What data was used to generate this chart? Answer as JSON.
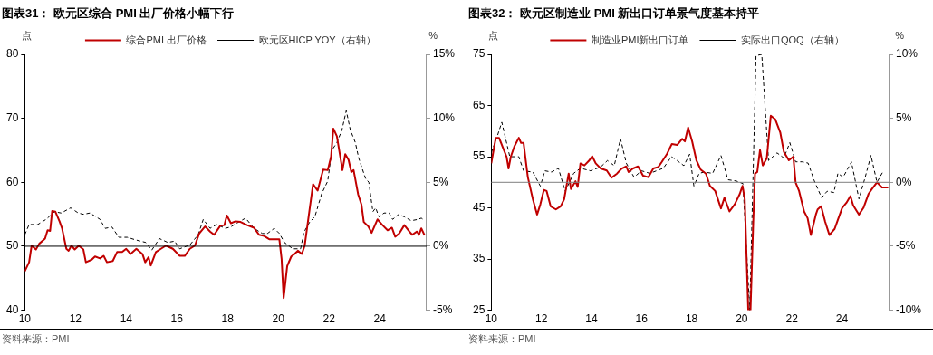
{
  "chart_data": [
    {
      "type": "line",
      "title": "图表31：  欧元区综合 PMI 出厂价格小幅下行",
      "ylabel": "点",
      "y2label": "%",
      "legend": "top",
      "marker": "none",
      "grid": false,
      "xlim": [
        2010,
        2025.85
      ],
      "xticks": [
        {
          "value": 2010,
          "label": "10"
        },
        {
          "value": 2012,
          "label": "12"
        },
        {
          "value": 2014,
          "label": "14"
        },
        {
          "value": 2016,
          "label": "16"
        },
        {
          "value": 2018,
          "label": "18"
        },
        {
          "value": 2020,
          "label": "20"
        },
        {
          "value": 2022,
          "label": "22"
        },
        {
          "value": 2024,
          "label": "24"
        }
      ],
      "ylim": [
        40,
        80
      ],
      "yticks": [
        40,
        50,
        60,
        70,
        80
      ],
      "y2lim": [
        -5,
        15
      ],
      "y2ticks": [
        {
          "value": -5,
          "label": "-5%"
        },
        {
          "value": 0,
          "label": "0%"
        },
        {
          "value": 5,
          "label": "5%"
        },
        {
          "value": 10,
          "label": "10%"
        },
        {
          "value": 15,
          "label": "15%"
        }
      ],
      "ref_lines": [
        {
          "axis": "y",
          "value": 50,
          "color": "#000000"
        }
      ],
      "series": [
        {
          "name": "综合PMI 出厂价格",
          "color": "#c00000",
          "line_style": "solid",
          "x": [
            2010.0,
            2010.17,
            2010.27,
            2010.44,
            2010.57,
            2010.8,
            2010.9,
            2011.0,
            2011.08,
            2011.21,
            2011.37,
            2011.47,
            2011.64,
            2011.73,
            2011.84,
            2011.97,
            2012.13,
            2012.31,
            2012.41,
            2012.64,
            2012.77,
            2012.97,
            2013.11,
            2013.24,
            2013.47,
            2013.64,
            2013.84,
            2014.0,
            2014.17,
            2014.4,
            2014.64,
            2014.75,
            2014.88,
            2014.97,
            2015.17,
            2015.37,
            2015.57,
            2015.84,
            2016.11,
            2016.31,
            2016.51,
            2016.71,
            2016.88,
            2017.11,
            2017.31,
            2017.47,
            2017.71,
            2017.87,
            2017.97,
            2018.13,
            2018.31,
            2018.51,
            2018.77,
            2019.04,
            2019.24,
            2019.44,
            2019.64,
            2019.91,
            2020.04,
            2020.13,
            2020.21,
            2020.35,
            2020.51,
            2020.64,
            2020.77,
            2020.93,
            2021.04,
            2021.17,
            2021.37,
            2021.55,
            2021.77,
            2021.95,
            2022.08,
            2022.17,
            2022.31,
            2022.53,
            2022.64,
            2022.77,
            2022.88,
            2022.97,
            2023.15,
            2023.28,
            2023.37,
            2023.55,
            2023.68,
            2023.91,
            2024.11,
            2024.31,
            2024.48,
            2024.61,
            2024.77,
            2024.97,
            2025.17,
            2025.28,
            2025.47,
            2025.55,
            2025.64,
            2025.77
          ],
          "values": [
            46.1,
            47.5,
            50.1,
            49.5,
            50.4,
            51.2,
            52.5,
            52.4,
            55.5,
            55.4,
            53.9,
            52.8,
            49.6,
            49.3,
            50.1,
            49.5,
            50.1,
            49.5,
            47.5,
            47.9,
            48.4,
            48.1,
            48.5,
            47.5,
            47.7,
            49.1,
            49.1,
            49.6,
            48.8,
            49.6,
            48.8,
            47.5,
            48.3,
            47.0,
            49.1,
            49.6,
            50.1,
            49.6,
            48.5,
            48.5,
            49.6,
            50.1,
            52.0,
            53.1,
            52.3,
            51.8,
            53.2,
            53.3,
            54.8,
            53.6,
            53.9,
            53.8,
            53.3,
            52.9,
            51.8,
            51.6,
            51.1,
            51.1,
            51.1,
            48.0,
            41.9,
            46.9,
            48.4,
            48.8,
            49.3,
            48.8,
            50.1,
            53.9,
            59.7,
            58.7,
            62.0,
            61.9,
            64.0,
            68.4,
            67.2,
            61.9,
            64.4,
            63.5,
            61.6,
            61.9,
            58.1,
            56.5,
            53.8,
            53.1,
            52.1,
            54.2,
            53.3,
            52.5,
            52.9,
            51.5,
            52.0,
            53.3,
            52.3,
            51.8,
            52.3,
            51.8,
            52.8,
            51.7
          ]
        },
        {
          "name": "欧元区HICP YOY（右轴）",
          "color": "#000000",
          "line_style": "dashed",
          "axis": "y2",
          "x": [
            2010.0,
            2010.17,
            2010.51,
            2010.84,
            2011.17,
            2011.44,
            2011.81,
            2012.11,
            2012.31,
            2012.57,
            2012.97,
            2013.17,
            2013.44,
            2013.71,
            2014.04,
            2014.37,
            2014.77,
            2015.01,
            2015.31,
            2015.64,
            2015.91,
            2016.11,
            2016.51,
            2016.84,
            2017.04,
            2017.31,
            2017.57,
            2017.91,
            2018.11,
            2018.44,
            2018.71,
            2019.04,
            2019.37,
            2019.57,
            2019.84,
            2020.04,
            2020.24,
            2020.57,
            2020.88,
            2021.01,
            2021.24,
            2021.44,
            2021.71,
            2021.95,
            2022.11,
            2022.31,
            2022.51,
            2022.68,
            2022.84,
            2023.04,
            2023.17,
            2023.44,
            2023.57,
            2023.73,
            2023.84,
            2023.97,
            2024.17,
            2024.37,
            2024.51,
            2024.75,
            2024.97,
            2025.24,
            2025.51,
            2025.64,
            2025.71
          ],
          "values": [
            0.9,
            1.7,
            1.7,
            2.1,
            2.7,
            2.6,
            3.0,
            2.6,
            2.5,
            2.6,
            2.1,
            1.4,
            1.5,
            0.7,
            0.7,
            0.5,
            0.3,
            -0.3,
            0.6,
            0.3,
            0.4,
            -0.2,
            0.1,
            0.9,
            2.1,
            1.4,
            1.7,
            1.4,
            1.5,
            1.9,
            2.2,
            1.4,
            1.0,
            1.0,
            1.4,
            1.0,
            0.3,
            -0.2,
            -0.2,
            1.1,
            1.9,
            2.3,
            4.1,
            5.1,
            7.5,
            8.1,
            9.1,
            10.6,
            9.1,
            8.1,
            6.9,
            5.3,
            5.0,
            2.7,
            3.0,
            2.3,
            2.6,
            2.6,
            2.1,
            2.5,
            2.3,
            2.0,
            2.1,
            2.2,
            2.1
          ]
        }
      ],
      "annotations": [
        "资料来源：PMI"
      ]
    },
    {
      "type": "line",
      "title": "图表32：  欧元区制造业 PMI 新出口订单景气度基本持平",
      "ylabel": "点",
      "y2label": "%",
      "legend": "top",
      "marker": "none",
      "grid": false,
      "xlim": [
        2010,
        2025.9
      ],
      "xticks": [
        {
          "value": 2010,
          "label": "10"
        },
        {
          "value": 2012,
          "label": "12"
        },
        {
          "value": 2014,
          "label": "14"
        },
        {
          "value": 2016,
          "label": "16"
        },
        {
          "value": 2018,
          "label": "18"
        },
        {
          "value": 2020,
          "label": "20"
        },
        {
          "value": 2022,
          "label": "22"
        },
        {
          "value": 2024,
          "label": "24"
        }
      ],
      "ylim": [
        25,
        75
      ],
      "yticks": [
        25,
        35,
        45,
        55,
        65,
        75
      ],
      "y2lim": [
        -10,
        10
      ],
      "y2ticks": [
        {
          "value": -10,
          "label": "-10%"
        },
        {
          "value": -5,
          "label": "-5%"
        },
        {
          "value": 0,
          "label": "0%"
        },
        {
          "value": 5,
          "label": "5%"
        },
        {
          "value": 10,
          "label": "10%"
        }
      ],
      "ref_lines": [
        {
          "axis": "y",
          "value": 50,
          "color": "#7f7f7f"
        }
      ],
      "series": [
        {
          "name": "制造业PMI新出口订单",
          "color": "#c00000",
          "line_style": "solid",
          "x": [
            2010.0,
            2010.18,
            2010.31,
            2010.47,
            2010.61,
            2010.69,
            2010.78,
            2010.92,
            2011.1,
            2011.19,
            2011.29,
            2011.46,
            2011.66,
            2011.83,
            2011.96,
            2012.1,
            2012.21,
            2012.37,
            2012.58,
            2012.77,
            2012.91,
            2013.09,
            2013.18,
            2013.36,
            2013.45,
            2013.56,
            2013.72,
            2013.9,
            2014.03,
            2014.17,
            2014.37,
            2014.61,
            2014.8,
            2015.02,
            2015.21,
            2015.39,
            2015.48,
            2015.66,
            2015.86,
            2016.06,
            2016.27,
            2016.47,
            2016.67,
            2016.81,
            2017.01,
            2017.21,
            2017.42,
            2017.62,
            2017.73,
            2017.86,
            2018.02,
            2018.19,
            2018.36,
            2018.57,
            2018.73,
            2018.94,
            2019.17,
            2019.31,
            2019.51,
            2019.72,
            2019.92,
            2020.03,
            2020.12,
            2020.26,
            2020.35,
            2020.46,
            2020.53,
            2020.62,
            2020.73,
            2020.84,
            2021.0,
            2021.16,
            2021.34,
            2021.54,
            2021.68,
            2021.88,
            2022.06,
            2022.15,
            2022.29,
            2022.49,
            2022.63,
            2022.76,
            2022.96,
            2023.03,
            2023.17,
            2023.33,
            2023.5,
            2023.71,
            2023.84,
            2024.01,
            2024.18,
            2024.34,
            2024.45,
            2024.68,
            2024.86,
            2025.06,
            2025.2,
            2025.4,
            2025.6,
            2025.85
          ],
          "values": [
            53.7,
            58.7,
            58.7,
            56.7,
            55.0,
            52.7,
            55.0,
            57.0,
            58.7,
            57.7,
            57.7,
            51.0,
            46.7,
            43.7,
            45.7,
            48.5,
            48.3,
            45.3,
            44.7,
            45.3,
            46.7,
            51.7,
            48.7,
            50.2,
            49.1,
            53.7,
            53.3,
            54.2,
            55.1,
            53.7,
            52.7,
            52.3,
            50.9,
            51.7,
            52.7,
            53.1,
            52.0,
            52.7,
            53.1,
            51.3,
            51.0,
            52.7,
            53.0,
            54.0,
            55.5,
            57.5,
            57.3,
            58.5,
            58.0,
            60.7,
            58.0,
            54.3,
            52.5,
            51.7,
            49.3,
            48.3,
            44.9,
            47.0,
            44.3,
            45.7,
            47.7,
            49.3,
            46.7,
            25.0,
            25.0,
            42.3,
            51.7,
            52.0,
            56.3,
            53.3,
            54.7,
            63.0,
            62.3,
            59.7,
            56.0,
            54.3,
            55.0,
            50.0,
            48.3,
            44.3,
            43.0,
            39.7,
            43.7,
            44.7,
            45.3,
            42.3,
            39.7,
            40.9,
            42.7,
            45.0,
            46.0,
            47.3,
            45.5,
            43.7,
            45.0,
            47.7,
            48.7,
            50.0,
            49.0,
            49.0
          ]
        },
        {
          "name": "实际出口QOQ（右轴）",
          "color": "#000000",
          "line_style": "dashed",
          "axis": "y2",
          "x": [
            2010.0,
            2010.24,
            2010.42,
            2010.74,
            2011.1,
            2011.29,
            2011.66,
            2011.96,
            2012.14,
            2012.41,
            2012.68,
            2012.95,
            2013.29,
            2013.56,
            2013.96,
            2014.37,
            2014.64,
            2014.91,
            2015.16,
            2015.39,
            2015.7,
            2016.0,
            2016.33,
            2016.6,
            2016.87,
            2017.19,
            2017.42,
            2017.69,
            2017.92,
            2018.09,
            2018.3,
            2018.5,
            2018.84,
            2019.17,
            2019.45,
            2019.78,
            2020.05,
            2020.32,
            2020.57,
            2020.8,
            2021.07,
            2021.41,
            2021.68,
            2021.92,
            2022.15,
            2022.42,
            2022.65,
            2022.9,
            2023.19,
            2023.41,
            2023.68,
            2023.84,
            2024.05,
            2024.38,
            2024.68,
            2024.93,
            2025.16,
            2025.4,
            2025.63
          ],
          "values": [
            2.3,
            3.6,
            4.7,
            2.0,
            2.0,
            0.9,
            0.8,
            -0.3,
            0.9,
            0.8,
            1.1,
            -0.7,
            0.7,
            1.1,
            0.9,
            1.2,
            1.7,
            1.3,
            3.4,
            1.5,
            0.4,
            0.9,
            0.7,
            0.9,
            1.1,
            2.0,
            1.7,
            1.3,
            2.2,
            -0.3,
            0.7,
            0.8,
            0.7,
            2.1,
            0.2,
            0.1,
            -0.1,
            -10.0,
            9.9,
            10.0,
            1.7,
            2.3,
            1.9,
            3.1,
            1.6,
            1.6,
            1.5,
            0.1,
            -1.2,
            -0.7,
            -0.8,
            0.7,
            0.4,
            1.6,
            -1.3,
            0.4,
            2.1,
            0.0,
            0.8
          ]
        }
      ],
      "annotations": [
        "资料来源：PMI"
      ]
    }
  ]
}
